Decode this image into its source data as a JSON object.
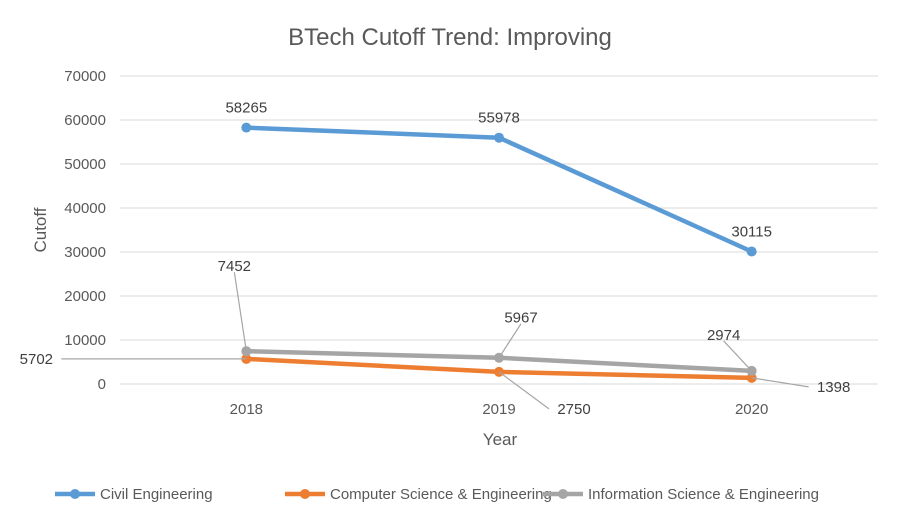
{
  "chart_data": {
    "type": "line",
    "title": "BTech Cutoff Trend: Improving",
    "xlabel": "Year",
    "ylabel": "Cutoff",
    "categories": [
      "2018",
      "2019",
      "2020"
    ],
    "ylim": [
      0,
      70000
    ],
    "yticks": [
      0,
      10000,
      20000,
      30000,
      40000,
      50000,
      60000,
      70000
    ],
    "grid": true,
    "legend_position": "bottom",
    "series": [
      {
        "name": "Civil Engineering",
        "values": [
          58265,
          55978,
          30115
        ],
        "color": "#5B9BD5"
      },
      {
        "name": "Computer Science & Engineering",
        "values": [
          5702,
          2750,
          1398
        ],
        "color": "#ED7D31"
      },
      {
        "name": "Information Science & Engineering",
        "values": [
          7452,
          5967,
          2974
        ],
        "color": "#A5A5A5"
      }
    ]
  }
}
